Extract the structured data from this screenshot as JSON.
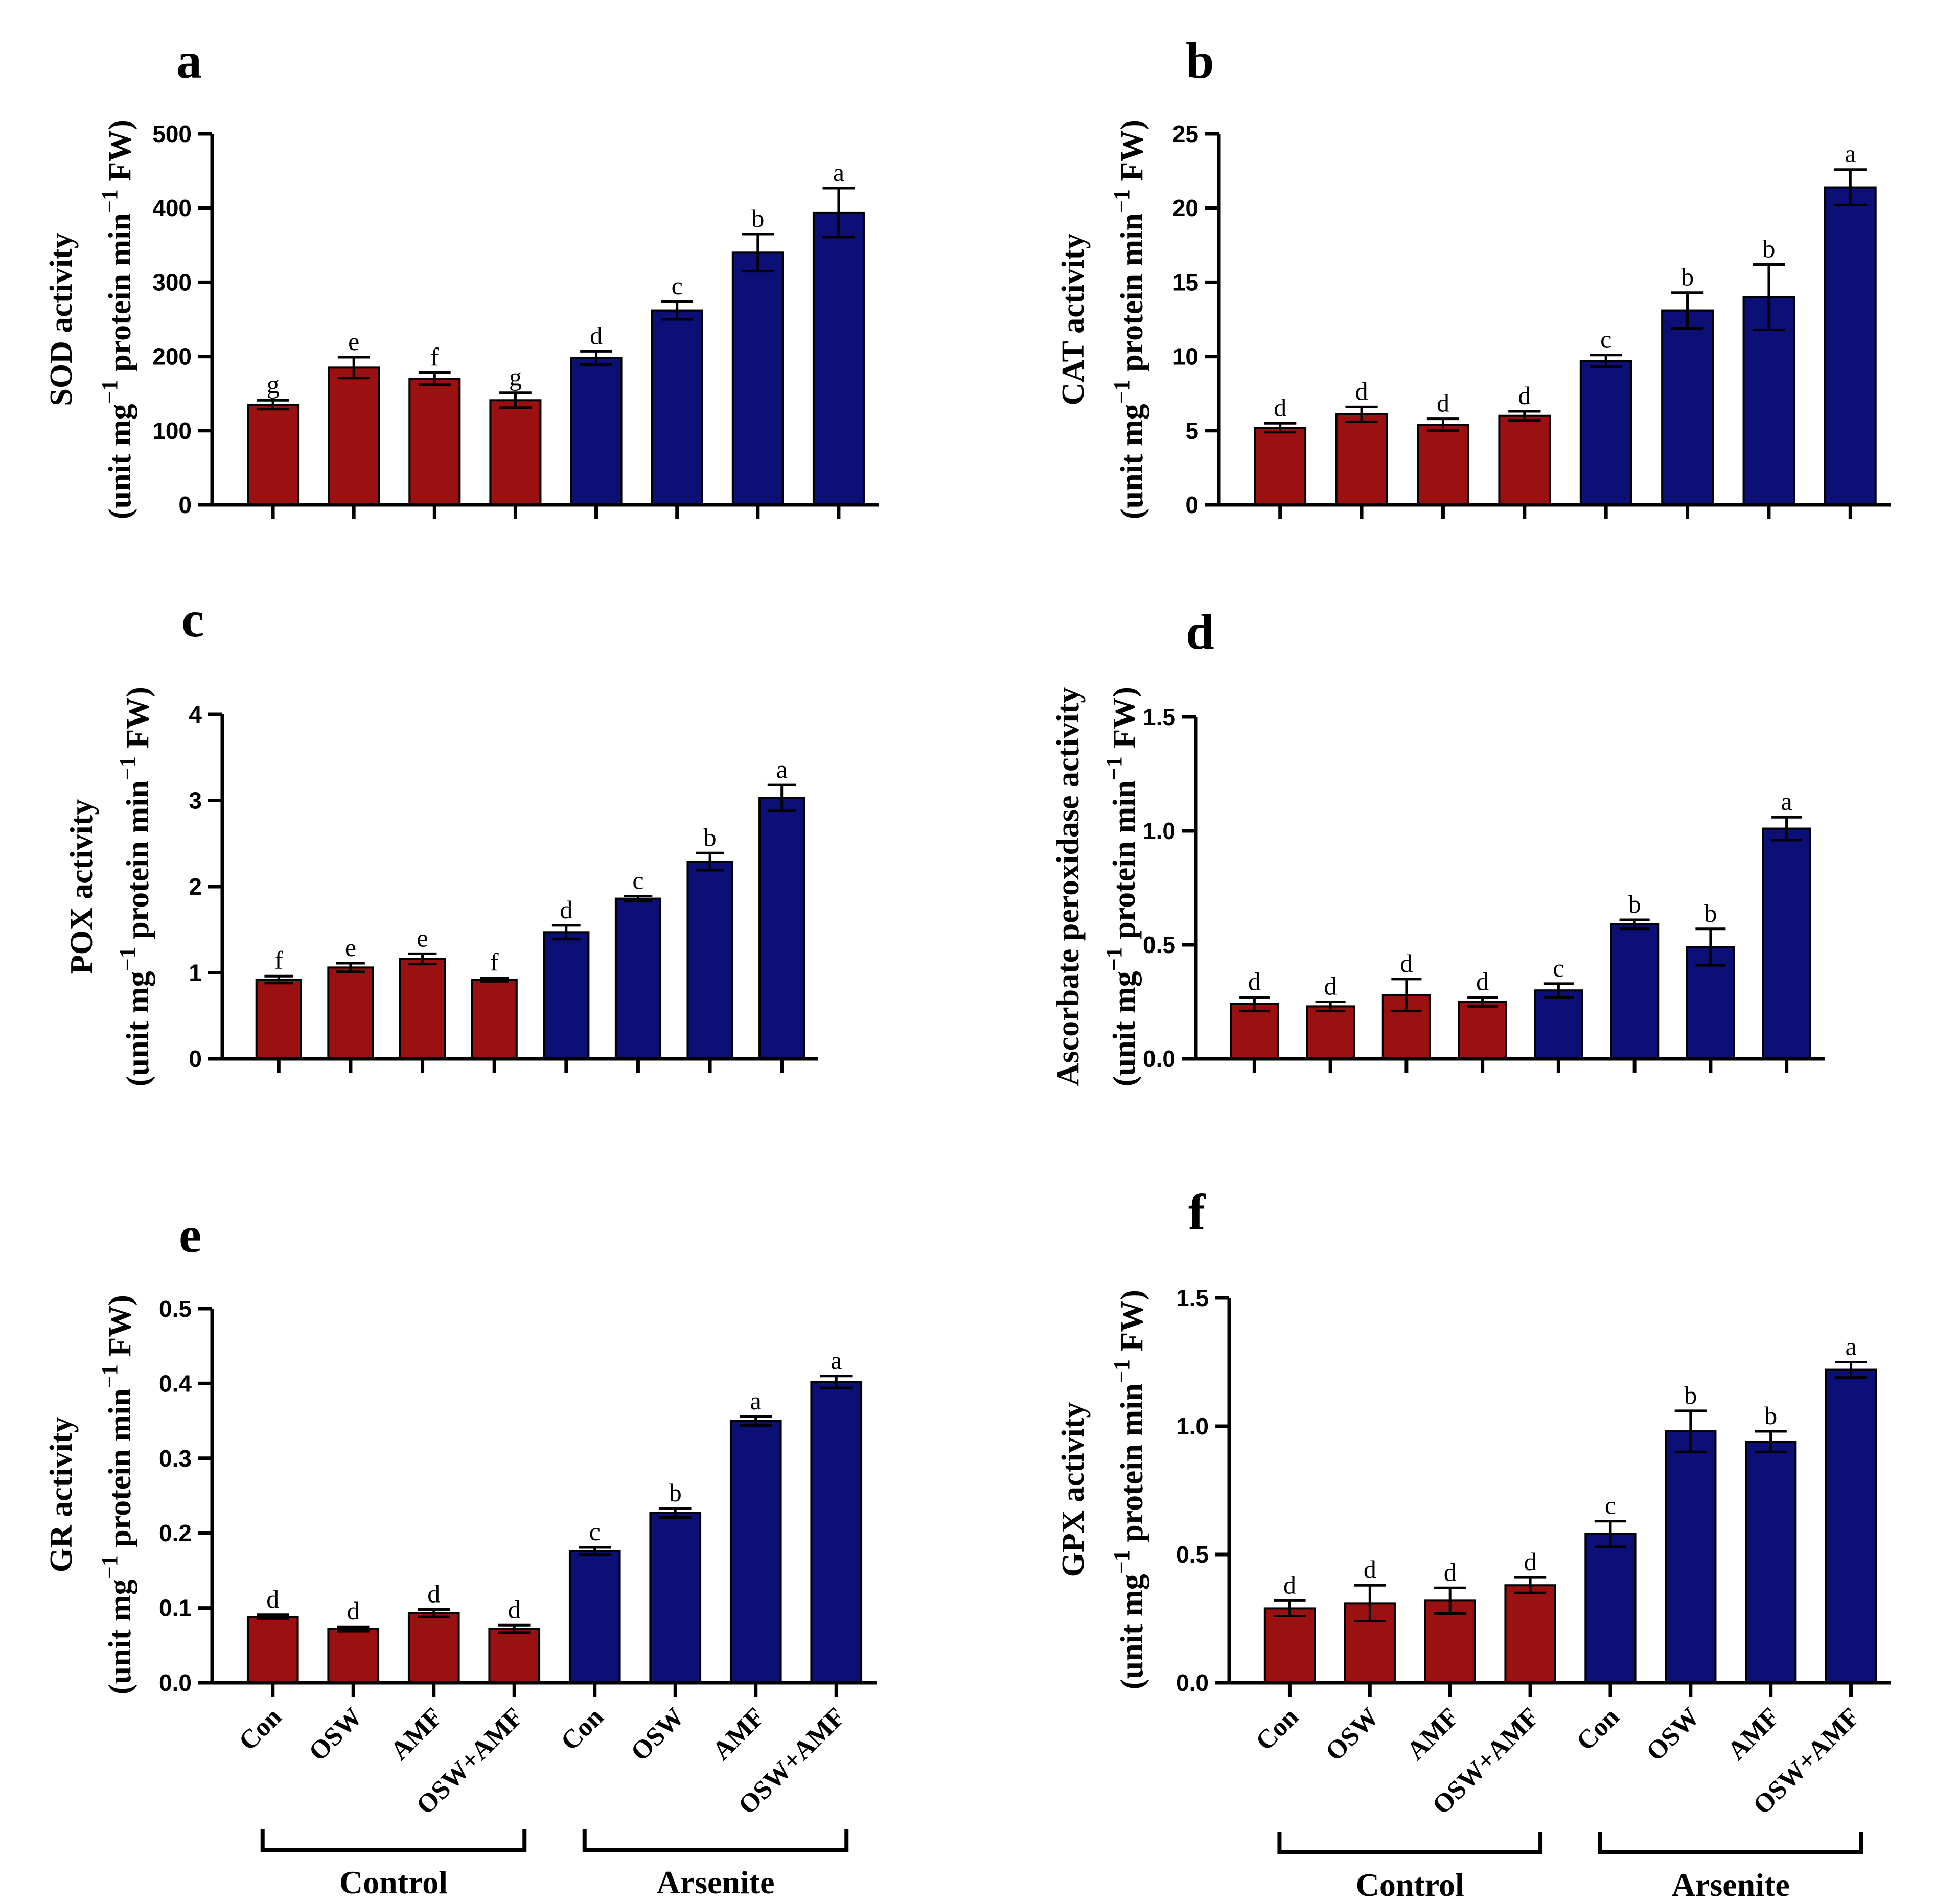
{
  "chart_data": [
    {
      "panel": "a",
      "type": "bar",
      "ylabel_line1": "SOD activity",
      "ylabel_line2": "(unit mg",
      "ylabel_sup1": "−1",
      "ylabel_line2b": " protein min",
      "ylabel_sup2": "−1",
      "ylabel_line2c": " FW)",
      "ylim": [
        0,
        500
      ],
      "yticks": [
        "0",
        "100",
        "200",
        "300",
        "400",
        "500"
      ],
      "yticks_values": [
        0,
        100,
        200,
        300,
        400,
        500
      ],
      "values": [
        135,
        185,
        170,
        141,
        198,
        262,
        340,
        394
      ],
      "errors": [
        6,
        14,
        8,
        10,
        9,
        12,
        25,
        33
      ],
      "letters": [
        "g",
        "e",
        "f",
        "g",
        "d",
        "c",
        "b",
        "a"
      ]
    },
    {
      "panel": "b",
      "type": "bar",
      "ylabel_line1": "CAT activity",
      "ylabel_line2": "(unit mg",
      "ylabel_sup1": "−1",
      "ylabel_line2b": " protein min",
      "ylabel_sup2": "−1",
      "ylabel_line2c": " FW)",
      "ylim": [
        0,
        25
      ],
      "yticks": [
        "0",
        "5",
        "10",
        "15",
        "20",
        "25"
      ],
      "yticks_values": [
        0,
        5,
        10,
        15,
        20,
        25
      ],
      "values": [
        5.2,
        6.1,
        5.4,
        6.0,
        9.7,
        13.1,
        14.0,
        21.4
      ],
      "errors": [
        0.3,
        0.5,
        0.4,
        0.3,
        0.4,
        1.2,
        2.2,
        1.2
      ],
      "letters": [
        "d",
        "d",
        "d",
        "d",
        "c",
        "b",
        "b",
        "a"
      ]
    },
    {
      "panel": "c",
      "type": "bar",
      "ylabel_line1": "POX activity",
      "ylabel_line2": "(unit mg",
      "ylabel_sup1": "−1",
      "ylabel_line2b": " protein min",
      "ylabel_sup2": "−1",
      "ylabel_line2c": " FW)",
      "ylim": [
        0,
        4
      ],
      "yticks": [
        "0",
        "1",
        "2",
        "3",
        "4"
      ],
      "yticks_values": [
        0,
        1,
        2,
        3,
        4
      ],
      "values": [
        0.92,
        1.06,
        1.16,
        0.92,
        1.47,
        1.86,
        2.29,
        3.03
      ],
      "errors": [
        0.04,
        0.05,
        0.06,
        0.02,
        0.08,
        0.03,
        0.1,
        0.15
      ],
      "letters": [
        "f",
        "e",
        "e",
        "f",
        "d",
        "c",
        "b",
        "a"
      ]
    },
    {
      "panel": "d",
      "type": "bar",
      "ylabel_line1": "Ascorbate peroxidase  activity",
      "ylabel_line2": "(unit mg",
      "ylabel_sup1": "−1",
      "ylabel_line2b": " protein min",
      "ylabel_sup2": "−1",
      "ylabel_line2c": " FW)",
      "ylim": [
        0,
        1.5
      ],
      "yticks": [
        "0.0",
        "0.5",
        "1.0",
        "1.5"
      ],
      "yticks_values": [
        0,
        0.5,
        1.0,
        1.5
      ],
      "values": [
        0.24,
        0.23,
        0.28,
        0.25,
        0.3,
        0.59,
        0.49,
        1.01
      ],
      "errors": [
        0.03,
        0.02,
        0.07,
        0.02,
        0.03,
        0.02,
        0.08,
        0.05
      ],
      "letters": [
        "d",
        "d",
        "d",
        "d",
        "c",
        "b",
        "b",
        "a"
      ]
    },
    {
      "panel": "e",
      "type": "bar",
      "ylabel_line1": "GR activity",
      "ylabel_line2": "(unit mg",
      "ylabel_sup1": "−1",
      "ylabel_line2b": " protein min",
      "ylabel_sup2": "−1",
      "ylabel_line2c": " FW)",
      "ylim": [
        0,
        0.5
      ],
      "yticks": [
        "0.0",
        "0.1",
        "0.2",
        "0.3",
        "0.4",
        "0.5"
      ],
      "yticks_values": [
        0,
        0.1,
        0.2,
        0.3,
        0.4,
        0.5
      ],
      "values": [
        0.088,
        0.072,
        0.093,
        0.072,
        0.176,
        0.227,
        0.35,
        0.402
      ],
      "errors": [
        0.003,
        0.003,
        0.005,
        0.005,
        0.005,
        0.006,
        0.006,
        0.008
      ],
      "letters": [
        "d",
        "d",
        "d",
        "d",
        "c",
        "b",
        "a",
        "a"
      ]
    },
    {
      "panel": "f",
      "type": "bar",
      "ylabel_line1": "GPX activity",
      "ylabel_line2": "(unit mg",
      "ylabel_sup1": "−1",
      "ylabel_line2b": " protein min",
      "ylabel_sup2": "−1",
      "ylabel_line2c": " FW)",
      "ylim": [
        0,
        1.5
      ],
      "yticks": [
        "0.0",
        "0.5",
        "1.0",
        "1.5"
      ],
      "yticks_values": [
        0,
        0.5,
        1.0,
        1.5
      ],
      "values": [
        0.29,
        0.31,
        0.32,
        0.38,
        0.58,
        0.98,
        0.94,
        1.22
      ],
      "errors": [
        0.03,
        0.07,
        0.05,
        0.03,
        0.05,
        0.08,
        0.04,
        0.03
      ],
      "letters": [
        "d",
        "d",
        "d",
        "d",
        "c",
        "b",
        "b",
        "a"
      ]
    }
  ],
  "categories": [
    "Con",
    "OSW",
    "AMF",
    "OSW+AMF",
    "Con",
    "OSW",
    "AMF",
    "OSW+AMF"
  ],
  "groups": [
    "Control",
    "Arsenite"
  ],
  "colors": {
    "control": "#9b1111",
    "arsenite": "#0c0f75",
    "axis": "#000000"
  }
}
